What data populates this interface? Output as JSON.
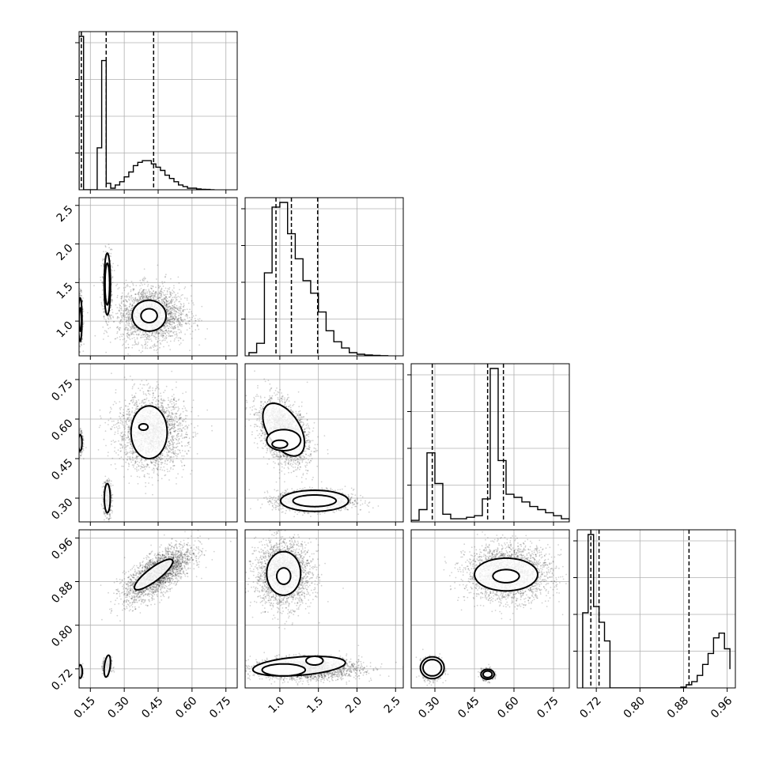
{
  "chart_data": {
    "type": "corner",
    "grid": true,
    "params": [
      {
        "range": [
          0.1,
          0.8
        ],
        "ticks": [
          0.15,
          0.3,
          0.45,
          0.6,
          0.75
        ],
        "tick_labels": [
          "0.15",
          "0.30",
          "0.45",
          "0.60",
          "0.75"
        ],
        "quantiles": [
          0.11,
          0.22,
          0.43
        ]
      },
      {
        "range": [
          0.55,
          2.6
        ],
        "ticks": [
          1.0,
          1.5,
          2.0,
          2.5
        ],
        "tick_labels": [
          "1.0",
          "1.5",
          "2.0",
          "2.5"
        ],
        "quantiles": [
          0.95,
          1.15,
          1.49
        ]
      },
      {
        "range": [
          0.21,
          0.81
        ],
        "ticks": [
          0.3,
          0.45,
          0.6,
          0.75
        ],
        "tick_labels": [
          "0.30",
          "0.45",
          "0.60",
          "0.75"
        ],
        "quantiles": [
          0.29,
          0.5,
          0.56
        ]
      },
      {
        "range": [
          0.685,
          0.975
        ],
        "ticks": [
          0.72,
          0.8,
          0.88,
          0.96
        ],
        "tick_labels": [
          "0.72",
          "0.80",
          "0.88",
          "0.96"
        ],
        "quantiles": [
          0.71,
          0.725,
          0.89
        ]
      }
    ],
    "histograms": [
      {
        "param": 0,
        "edges": [
          0.1,
          0.12,
          0.14,
          0.16,
          0.18,
          0.2,
          0.22,
          0.24,
          0.26,
          0.28,
          0.3,
          0.32,
          0.34,
          0.36,
          0.38,
          0.4,
          0.42,
          0.44,
          0.46,
          0.48,
          0.5,
          0.52,
          0.54,
          0.56,
          0.58,
          0.6,
          0.62,
          0.64,
          0.66,
          0.68,
          0.7
        ],
        "counts": [
          95,
          0,
          0,
          0,
          26,
          80,
          4,
          1,
          3,
          5,
          8,
          11,
          15,
          17,
          18,
          18,
          16,
          14,
          12,
          9,
          7,
          5,
          3,
          2,
          1,
          1,
          0.5,
          0.3,
          0.2,
          0
        ]
      },
      {
        "param": 1,
        "edges": [
          0.6,
          0.7,
          0.8,
          0.9,
          1.0,
          1.1,
          1.2,
          1.3,
          1.4,
          1.5,
          1.6,
          1.7,
          1.8,
          1.9,
          2.0,
          2.1,
          2.2,
          2.3,
          2.4
        ],
        "counts": [
          2,
          8,
          53,
          95,
          98,
          78,
          62,
          48,
          40,
          28,
          16,
          9,
          5,
          2,
          1,
          0.5,
          0.3,
          0.1
        ]
      },
      {
        "param": 2,
        "edges": [
          0.21,
          0.24,
          0.27,
          0.3,
          0.33,
          0.36,
          0.39,
          0.42,
          0.45,
          0.48,
          0.51,
          0.54,
          0.57,
          0.6,
          0.63,
          0.66,
          0.69,
          0.72,
          0.75,
          0.78,
          0.81
        ],
        "counts": [
          1,
          8,
          45,
          25,
          5,
          2,
          2,
          3,
          4,
          15,
          100,
          40,
          18,
          16,
          13,
          10,
          8,
          6,
          4,
          2
        ]
      },
      {
        "param": 3,
        "edges": [
          0.695,
          0.705,
          0.715,
          0.725,
          0.735,
          0.745,
          0.755,
          0.765,
          0.775,
          0.785,
          0.795,
          0.805,
          0.815,
          0.825,
          0.835,
          0.845,
          0.855,
          0.865,
          0.875,
          0.885,
          0.895,
          0.905,
          0.915,
          0.925,
          0.935,
          0.945,
          0.955,
          0.965
        ],
        "counts": [
          48,
          98,
          52,
          42,
          30,
          0,
          0,
          0,
          0,
          0,
          0,
          0,
          0,
          0,
          0,
          0,
          0,
          0,
          0.5,
          2,
          4,
          8,
          15,
          22,
          32,
          35,
          25,
          12
        ]
      }
    ],
    "scatter_panels": [
      {
        "x": 0,
        "y": 1,
        "blobs": [
          {
            "cx": 0.105,
            "cy": 1.02,
            "sx": 0.006,
            "sy": 0.16,
            "rho": 0,
            "n": 500
          },
          {
            "cx": 0.225,
            "cy": 1.48,
            "sx": 0.01,
            "sy": 0.22,
            "rho": 0,
            "n": 500
          },
          {
            "cx": 0.42,
            "cy": 1.08,
            "sx": 0.075,
            "sy": 0.18,
            "rho": 0,
            "n": 2200
          }
        ],
        "contours": [
          {
            "cx": 0.105,
            "cy": 1.02,
            "rx": 0.008,
            "ry": 0.28,
            "rho": 0
          },
          {
            "cx": 0.105,
            "cy": 1.02,
            "rx": 0.005,
            "ry": 0.15,
            "rho": 0
          },
          {
            "cx": 0.225,
            "cy": 1.48,
            "rx": 0.014,
            "ry": 0.4,
            "rho": 0
          },
          {
            "cx": 0.225,
            "cy": 1.48,
            "rx": 0.01,
            "ry": 0.27,
            "rho": 0
          },
          {
            "cx": 0.41,
            "cy": 1.07,
            "rx": 0.075,
            "ry": 0.2,
            "rho": 0
          },
          {
            "cx": 0.41,
            "cy": 1.07,
            "rx": 0.036,
            "ry": 0.09,
            "rho": 0
          }
        ]
      },
      {
        "x": 0,
        "y": 2,
        "blobs": [
          {
            "cx": 0.105,
            "cy": 0.51,
            "sx": 0.006,
            "sy": 0.02,
            "rho": 0,
            "n": 400
          },
          {
            "cx": 0.225,
            "cy": 0.3,
            "sx": 0.01,
            "sy": 0.035,
            "rho": 0,
            "n": 400
          },
          {
            "cx": 0.42,
            "cy": 0.55,
            "sx": 0.075,
            "sy": 0.07,
            "rho": 0,
            "n": 2200
          }
        ],
        "contours": [
          {
            "cx": 0.105,
            "cy": 0.51,
            "rx": 0.008,
            "ry": 0.03,
            "rho": 0
          },
          {
            "cx": 0.225,
            "cy": 0.3,
            "rx": 0.013,
            "ry": 0.055,
            "rho": 0
          },
          {
            "cx": 0.41,
            "cy": 0.55,
            "rx": 0.08,
            "ry": 0.1,
            "rho": 0
          },
          {
            "cx": 0.385,
            "cy": 0.57,
            "rx": 0.02,
            "ry": 0.012,
            "rho": 0
          }
        ]
      },
      {
        "x": 0,
        "y": 3,
        "blobs": [
          {
            "cx": 0.105,
            "cy": 0.715,
            "sx": 0.006,
            "sy": 0.006,
            "rho": 0,
            "n": 300
          },
          {
            "cx": 0.225,
            "cy": 0.725,
            "sx": 0.01,
            "sy": 0.008,
            "rho": 0,
            "n": 300
          },
          {
            "cx": 0.45,
            "cy": 0.895,
            "sx": 0.075,
            "sy": 0.025,
            "rho": 0.7,
            "n": 2400
          }
        ],
        "contours": [
          {
            "cx": 0.105,
            "cy": 0.715,
            "rx": 0.009,
            "ry": 0.012,
            "rho": 0
          },
          {
            "cx": 0.225,
            "cy": 0.725,
            "rx": 0.014,
            "ry": 0.02,
            "rho": 0.4
          },
          {
            "cx": 0.43,
            "cy": 0.893,
            "rx": 0.085,
            "ry": 0.028,
            "rho": 0.85
          }
        ]
      },
      {
        "x": 1,
        "y": 2,
        "blobs": [
          {
            "cx": 1.05,
            "cy": 0.55,
            "sx": 0.16,
            "sy": 0.06,
            "rho": -0.4,
            "n": 2200
          },
          {
            "cx": 1.45,
            "cy": 0.29,
            "sx": 0.25,
            "sy": 0.02,
            "rho": 0,
            "n": 1500
          }
        ],
        "contours": [
          {
            "cx": 1.05,
            "cy": 0.56,
            "rx": 0.27,
            "ry": 0.1,
            "rho": -0.5
          },
          {
            "cx": 1.05,
            "cy": 0.52,
            "rx": 0.22,
            "ry": 0.04,
            "rho": 0
          },
          {
            "cx": 1.0,
            "cy": 0.505,
            "rx": 0.1,
            "ry": 0.015,
            "rho": 0
          },
          {
            "cx": 1.45,
            "cy": 0.29,
            "rx": 0.44,
            "ry": 0.04,
            "rho": 0
          },
          {
            "cx": 1.45,
            "cy": 0.29,
            "rx": 0.28,
            "ry": 0.022,
            "rho": 0
          }
        ]
      },
      {
        "x": 1,
        "y": 3,
        "blobs": [
          {
            "cx": 1.05,
            "cy": 0.895,
            "sx": 0.18,
            "sy": 0.03,
            "rho": 0,
            "n": 2200
          },
          {
            "cx": 1.35,
            "cy": 0.72,
            "sx": 0.35,
            "sy": 0.01,
            "rho": 0,
            "n": 2000
          }
        ],
        "contours": [
          {
            "cx": 1.05,
            "cy": 0.895,
            "rx": 0.22,
            "ry": 0.04,
            "rho": 0
          },
          {
            "cx": 1.05,
            "cy": 0.89,
            "rx": 0.09,
            "ry": 0.015,
            "rho": 0
          },
          {
            "cx": 1.25,
            "cy": 0.725,
            "rx": 0.6,
            "ry": 0.018,
            "rho": 0.35
          },
          {
            "cx": 1.05,
            "cy": 0.718,
            "rx": 0.28,
            "ry": 0.011,
            "rho": 0
          },
          {
            "cx": 1.45,
            "cy": 0.735,
            "rx": 0.11,
            "ry": 0.008,
            "rho": 0
          }
        ]
      },
      {
        "x": 2,
        "y": 3,
        "blobs": [
          {
            "cx": 0.29,
            "cy": 0.72,
            "sx": 0.018,
            "sy": 0.01,
            "rho": 0,
            "n": 800
          },
          {
            "cx": 0.5,
            "cy": 0.71,
            "sx": 0.012,
            "sy": 0.005,
            "rho": 0,
            "n": 600
          },
          {
            "cx": 0.58,
            "cy": 0.895,
            "sx": 0.08,
            "sy": 0.025,
            "rho": 0,
            "n": 2400
          }
        ],
        "contours": [
          {
            "cx": 0.29,
            "cy": 0.722,
            "rx": 0.045,
            "ry": 0.02,
            "rho": 0
          },
          {
            "cx": 0.29,
            "cy": 0.722,
            "rx": 0.035,
            "ry": 0.015,
            "rho": 0
          },
          {
            "cx": 0.5,
            "cy": 0.71,
            "rx": 0.025,
            "ry": 0.009,
            "rho": 0
          },
          {
            "cx": 0.5,
            "cy": 0.71,
            "rx": 0.017,
            "ry": 0.006,
            "rho": 0
          },
          {
            "cx": 0.57,
            "cy": 0.893,
            "rx": 0.12,
            "ry": 0.03,
            "rho": 0
          },
          {
            "cx": 0.57,
            "cy": 0.89,
            "rx": 0.05,
            "ry": 0.012,
            "rho": 0
          }
        ]
      }
    ]
  }
}
